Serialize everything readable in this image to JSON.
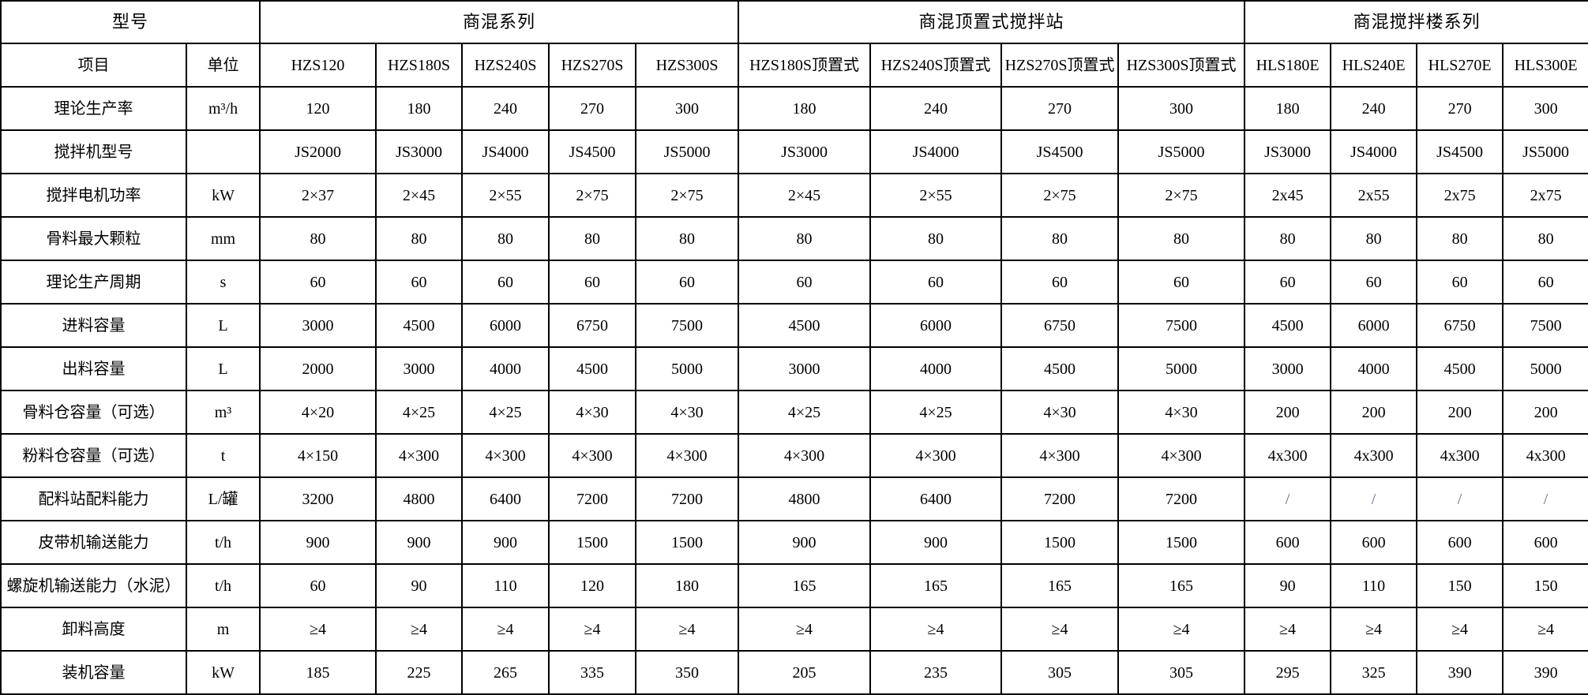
{
  "table": {
    "title_cell": "型号",
    "groups": [
      {
        "label": "商混系列",
        "span": 5
      },
      {
        "label": "商混顶置式搅拌站",
        "span": 4
      },
      {
        "label": "商混搅拌楼系列",
        "span": 4
      }
    ],
    "item_header": "项目",
    "unit_header": "单位",
    "models": [
      "HZS120",
      "HZS180S",
      "HZS240S",
      "HZS270S",
      "HZS300S",
      "HZS180S顶置式",
      "HZS240S顶置式",
      "HZS270S顶置式",
      "HZS300S顶置式",
      "HLS180E",
      "HLS240E",
      "HLS270E",
      "HLS300E"
    ],
    "rows": [
      {
        "item": "理论生产率",
        "unit": "m³/h",
        "values": [
          "120",
          "180",
          "240",
          "270",
          "300",
          "180",
          "240",
          "270",
          "300",
          "180",
          "240",
          "270",
          "300"
        ]
      },
      {
        "item": "搅拌机型号",
        "unit": "",
        "values": [
          "JS2000",
          "JS3000",
          "JS4000",
          "JS4500",
          "JS5000",
          "JS3000",
          "JS4000",
          "JS4500",
          "JS5000",
          "JS3000",
          "JS4000",
          "JS4500",
          "JS5000"
        ]
      },
      {
        "item": "搅拌电机功率",
        "unit": "kW",
        "values": [
          "2×37",
          "2×45",
          "2×55",
          "2×75",
          "2×75",
          "2×45",
          "2×55",
          "2×75",
          "2×75",
          "2x45",
          "2x55",
          "2x75",
          "2x75"
        ]
      },
      {
        "item": "骨料最大颗粒",
        "unit": "mm",
        "values": [
          "80",
          "80",
          "80",
          "80",
          "80",
          "80",
          "80",
          "80",
          "80",
          "80",
          "80",
          "80",
          "80"
        ]
      },
      {
        "item": "理论生产周期",
        "unit": "s",
        "values": [
          "60",
          "60",
          "60",
          "60",
          "60",
          "60",
          "60",
          "60",
          "60",
          "60",
          "60",
          "60",
          "60"
        ]
      },
      {
        "item": "进料容量",
        "unit": "L",
        "values": [
          "3000",
          "4500",
          "6000",
          "6750",
          "7500",
          "4500",
          "6000",
          "6750",
          "7500",
          "4500",
          "6000",
          "6750",
          "7500"
        ]
      },
      {
        "item": "出料容量",
        "unit": "L",
        "values": [
          "2000",
          "3000",
          "4000",
          "4500",
          "5000",
          "3000",
          "4000",
          "4500",
          "5000",
          "3000",
          "4000",
          "4500",
          "5000"
        ]
      },
      {
        "item": "骨料仓容量（可选）",
        "unit": "m³",
        "values": [
          "4×20",
          "4×25",
          "4×25",
          "4×30",
          "4×30",
          "4×25",
          "4×25",
          "4×30",
          "4×30",
          "200",
          "200",
          "200",
          "200"
        ]
      },
      {
        "item": "粉料仓容量（可选）",
        "unit": "t",
        "values": [
          "4×150",
          "4×300",
          "4×300",
          "4×300",
          "4×300",
          "4×300",
          "4×300",
          "4×300",
          "4×300",
          "4x300",
          "4x300",
          "4x300",
          "4x300"
        ]
      },
      {
        "item": "配料站配料能力",
        "unit": "L/罐",
        "values": [
          "3200",
          "4800",
          "6400",
          "7200",
          "7200",
          "4800",
          "6400",
          "7200",
          "7200",
          "/",
          "/",
          "/",
          "/"
        ]
      },
      {
        "item": "皮带机输送能力",
        "unit": "t/h",
        "values": [
          "900",
          "900",
          "900",
          "1500",
          "1500",
          "900",
          "900",
          "1500",
          "1500",
          "600",
          "600",
          "600",
          "600"
        ]
      },
      {
        "item": "螺旋机输送能力（水泥）",
        "unit": "t/h",
        "values": [
          "60",
          "90",
          "110",
          "120",
          "180",
          "165",
          "165",
          "165",
          "165",
          "90",
          "110",
          "150",
          "150"
        ]
      },
      {
        "item": "卸料高度",
        "unit": "m",
        "values": [
          "≥4",
          "≥4",
          "≥4",
          "≥4",
          "≥4",
          "≥4",
          "≥4",
          "≥4",
          "≥4",
          "≥4",
          "≥4",
          "≥4",
          "≥4"
        ]
      },
      {
        "item": "装机容量",
        "unit": "kW",
        "values": [
          "185",
          "225",
          "265",
          "335",
          "350",
          "205",
          "235",
          "305",
          "305",
          "295",
          "325",
          "390",
          "390"
        ]
      }
    ],
    "colors": {
      "text": "#000000",
      "border": "#000000",
      "background": "#ffffff",
      "slash": "#5b6e8a"
    }
  }
}
